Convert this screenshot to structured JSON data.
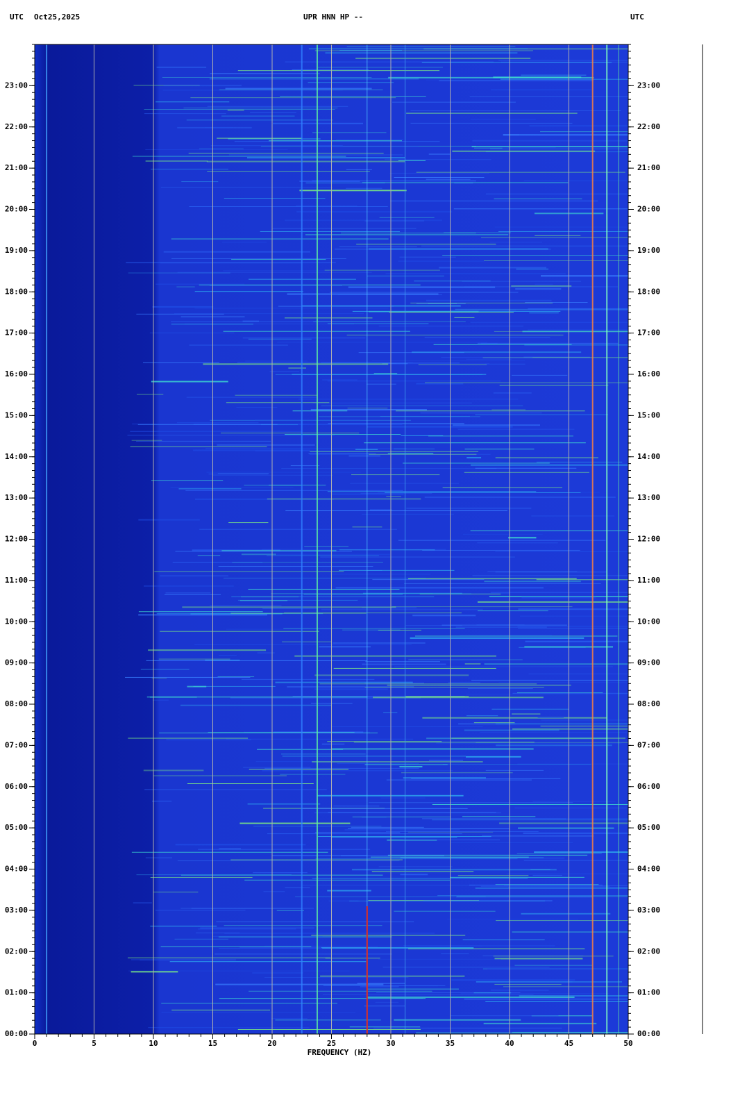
{
  "chart_data": {
    "type": "spectrogram",
    "title": "UPR HNN HP --",
    "time_zone": "UTC",
    "date": "Oct25,2025",
    "x_label": "FREQUENCY (HZ)",
    "xlim": [
      0,
      50
    ],
    "xticks": [
      0,
      5,
      10,
      15,
      20,
      25,
      30,
      35,
      40,
      45,
      50
    ],
    "ylim": [
      0,
      24
    ],
    "yticks": [
      {
        "value": 0,
        "label": "00:00"
      },
      {
        "value": 1,
        "label": "01:00"
      },
      {
        "value": 2,
        "label": "02:00"
      },
      {
        "value": 3,
        "label": "03:00"
      },
      {
        "value": 4,
        "label": "04:00"
      },
      {
        "value": 5,
        "label": "05:00"
      },
      {
        "value": 6,
        "label": "06:00"
      },
      {
        "value": 7,
        "label": "07:00"
      },
      {
        "value": 8,
        "label": "08:00"
      },
      {
        "value": 9,
        "label": "09:00"
      },
      {
        "value": 10,
        "label": "10:00"
      },
      {
        "value": 11,
        "label": "11:00"
      },
      {
        "value": 12,
        "label": "12:00"
      },
      {
        "value": 13,
        "label": "13:00"
      },
      {
        "value": 14,
        "label": "14:00"
      },
      {
        "value": 15,
        "label": "15:00"
      },
      {
        "value": 16,
        "label": "16:00"
      },
      {
        "value": 17,
        "label": "17:00"
      },
      {
        "value": 18,
        "label": "18:00"
      },
      {
        "value": 19,
        "label": "19:00"
      },
      {
        "value": 20,
        "label": "20:00"
      },
      {
        "value": 21,
        "label": "21:00"
      },
      {
        "value": 22,
        "label": "22:00"
      },
      {
        "value": 23,
        "label": "23:00"
      }
    ],
    "grid": true,
    "grid_color": "#b0b0b0",
    "background_color": "#1c3ad8"
  }
}
